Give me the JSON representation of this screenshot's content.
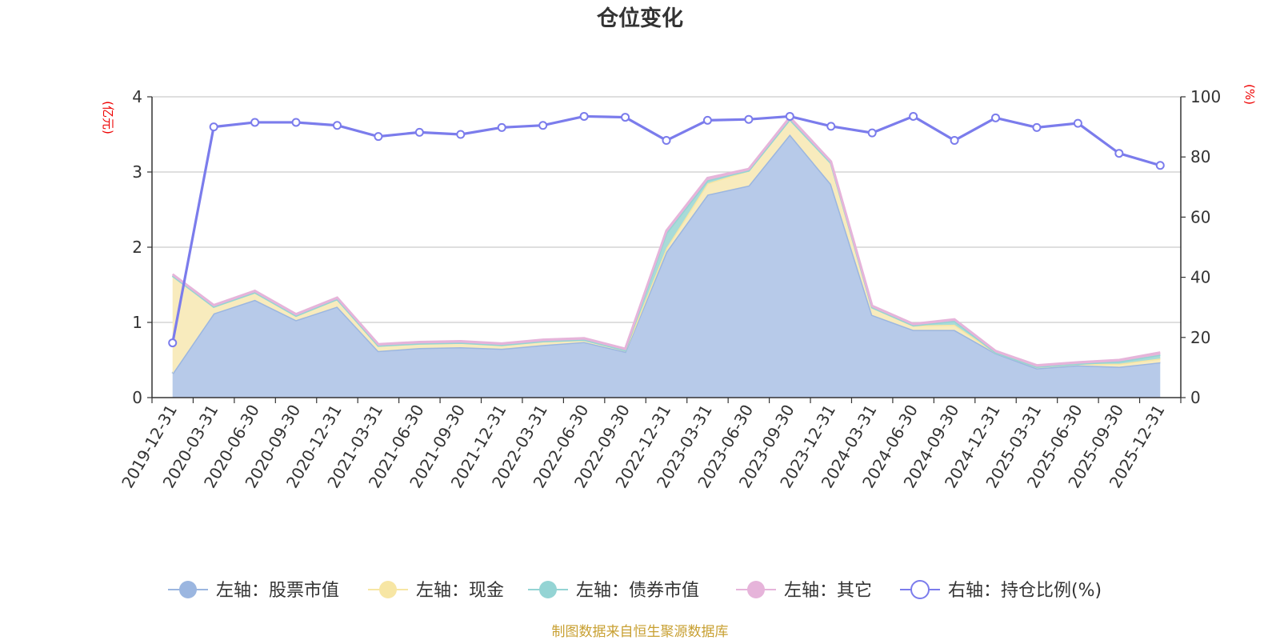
{
  "chart_data": {
    "type": "area",
    "title": "仓位变化",
    "left_axis": {
      "unit": "(亿元)",
      "ylim": [
        0,
        4
      ],
      "ticks": [
        "0",
        "1",
        "2",
        "3",
        "4"
      ]
    },
    "right_axis": {
      "unit": "(%)",
      "ylim": [
        0,
        100
      ],
      "ticks": [
        "0",
        "20",
        "40",
        "60",
        "80",
        "100"
      ]
    },
    "x": [
      "2019-12-31",
      "2020-03-31",
      "2020-06-30",
      "2020-09-30",
      "2020-12-31",
      "2021-03-31",
      "2021-06-30",
      "2021-09-30",
      "2021-12-31",
      "2022-03-31",
      "2022-06-30",
      "2022-09-30",
      "2022-12-31",
      "2023-03-31",
      "2023-06-30",
      "2023-09-30",
      "2023-12-31",
      "2024-03-31",
      "2024-06-30",
      "2024-09-30",
      "2024-12-31",
      "2025-03-31",
      "2025-06-30",
      "2025-09-30",
      "2025-12-31"
    ],
    "stacked_series": [
      {
        "name": "左轴：股票市值",
        "color": "#9bb6e0",
        "fill": "#b7cae9",
        "values": [
          0.32,
          1.12,
          1.3,
          1.03,
          1.21,
          0.62,
          0.66,
          0.67,
          0.65,
          0.7,
          0.74,
          0.61,
          1.94,
          2.7,
          2.82,
          3.5,
          2.84,
          1.1,
          0.9,
          0.9,
          0.59,
          0.39,
          0.43,
          0.41,
          0.47
        ]
      },
      {
        "name": "左轴：现金",
        "color": "#f7e6a4",
        "fill": "#f8ebbd",
        "values": [
          1.3,
          0.09,
          0.1,
          0.06,
          0.1,
          0.07,
          0.06,
          0.06,
          0.05,
          0.05,
          0.03,
          0.02,
          0.05,
          0.15,
          0.2,
          0.2,
          0.28,
          0.1,
          0.06,
          0.07,
          0.01,
          0.02,
          0.02,
          0.04,
          0.05
        ]
      },
      {
        "name": "左轴：债券市值",
        "color": "#94d4d4",
        "fill": "#a8dbd8",
        "values": [
          0,
          0,
          0,
          0,
          0,
          0,
          0,
          0,
          0,
          0,
          0,
          0,
          0.2,
          0.04,
          0,
          0,
          0,
          0,
          0,
          0.05,
          0,
          0,
          0,
          0.03,
          0.05
        ]
      },
      {
        "name": "左轴：其它",
        "color": "#e6b4da",
        "fill": "#e3b9d8",
        "values": [
          0.02,
          0.02,
          0.02,
          0.02,
          0.02,
          0.02,
          0.02,
          0.02,
          0.02,
          0.02,
          0.02,
          0.02,
          0.03,
          0.03,
          0.02,
          0.03,
          0.02,
          0.02,
          0.02,
          0.02,
          0.02,
          0.02,
          0.02,
          0.02,
          0.03
        ]
      }
    ],
    "line_series": {
      "name": "右轴：持仓比例(%)",
      "color": "#7b7cec",
      "values": [
        18.2,
        90.0,
        91.5,
        91.5,
        90.5,
        86.8,
        88.2,
        87.5,
        89.8,
        90.5,
        93.5,
        93.2,
        85.5,
        92.2,
        92.5,
        93.5,
        90.2,
        88.0,
        93.5,
        85.5,
        93.0,
        89.8,
        91.2,
        81.2,
        77.2
      ]
    },
    "grid": true,
    "legend_position": "bottom"
  },
  "footer": {
    "source": "制图数据来自恒生聚源数据库"
  }
}
